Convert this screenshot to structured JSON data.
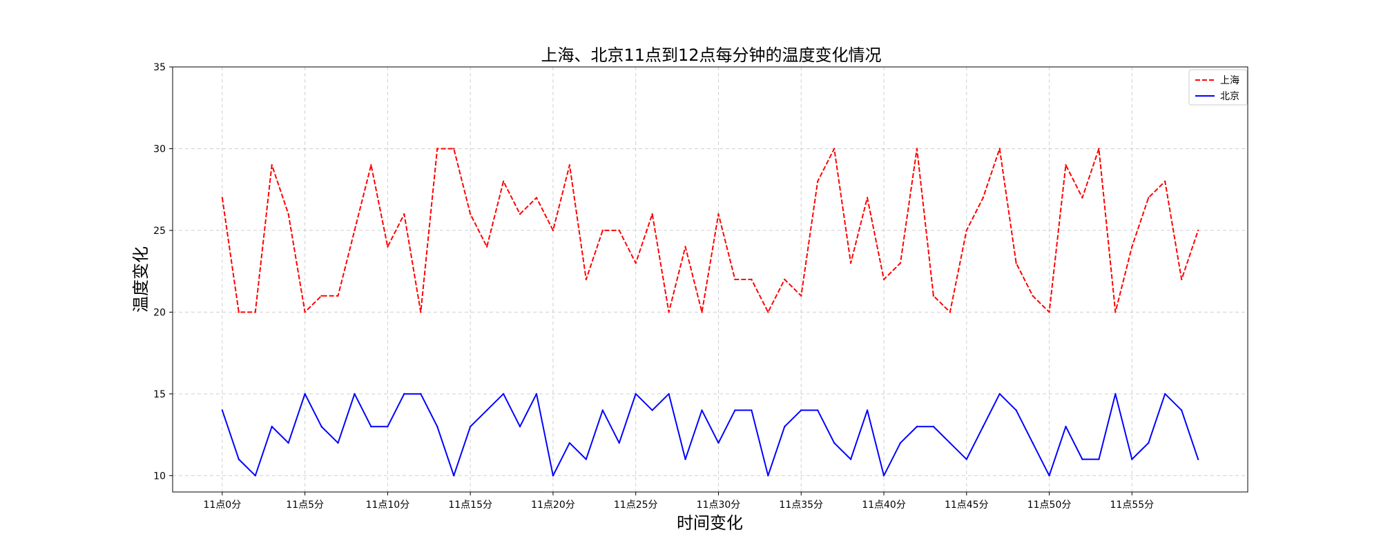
{
  "chart_data": {
    "type": "line",
    "title": "上海、北京11点到12点每分钟的温度变化情况",
    "xlabel": "时间变化",
    "ylabel": "温度变化",
    "xlim": [
      -3,
      62
    ],
    "ylim": [
      9,
      35
    ],
    "yticks": [
      10,
      15,
      20,
      25,
      30,
      35
    ],
    "xticks": [
      0,
      5,
      10,
      15,
      20,
      25,
      30,
      35,
      40,
      45,
      50,
      55
    ],
    "xtick_labels": [
      "11点0分",
      "11点5分",
      "11点10分",
      "11点15分",
      "11点20分",
      "11点25分",
      "11点30分",
      "11点35分",
      "11点40分",
      "11点45分",
      "11点50分",
      "11点55分"
    ],
    "grid": true,
    "legend_position": "top-right",
    "x": [
      0,
      1,
      2,
      3,
      4,
      5,
      6,
      7,
      8,
      9,
      10,
      11,
      12,
      13,
      14,
      15,
      16,
      17,
      18,
      19,
      20,
      21,
      22,
      23,
      24,
      25,
      26,
      27,
      28,
      29,
      30,
      31,
      32,
      33,
      34,
      35,
      36,
      37,
      38,
      39,
      40,
      41,
      42,
      43,
      44,
      45,
      46,
      47,
      48,
      49,
      50,
      51,
      52,
      53,
      54,
      55,
      56,
      57,
      58,
      59
    ],
    "series": [
      {
        "name": "上海",
        "color": "#ff0000",
        "style": "dashed",
        "values": [
          27,
          20,
          20,
          29,
          26,
          20,
          21,
          21,
          25,
          29,
          24,
          26,
          20,
          30,
          30,
          26,
          24,
          28,
          26,
          27,
          25,
          29,
          22,
          25,
          25,
          23,
          26,
          20,
          24,
          20,
          26,
          22,
          22,
          20,
          22,
          21,
          28,
          30,
          23,
          27,
          22,
          23,
          30,
          21,
          20,
          25,
          27,
          30,
          23,
          21,
          20,
          29,
          27,
          30,
          20,
          24,
          27,
          28,
          22,
          25
        ]
      },
      {
        "name": "北京",
        "color": "#0000ff",
        "style": "solid",
        "values": [
          14,
          11,
          10,
          13,
          12,
          15,
          13,
          12,
          15,
          13,
          13,
          15,
          15,
          13,
          10,
          13,
          14,
          15,
          13,
          15,
          10,
          12,
          11,
          14,
          12,
          15,
          14,
          15,
          11,
          14,
          12,
          14,
          14,
          10,
          13,
          14,
          14,
          12,
          11,
          14,
          10,
          12,
          13,
          13,
          12,
          11,
          13,
          15,
          14,
          12,
          10,
          13,
          11,
          11,
          15,
          11,
          12,
          15,
          14,
          11
        ]
      }
    ]
  }
}
